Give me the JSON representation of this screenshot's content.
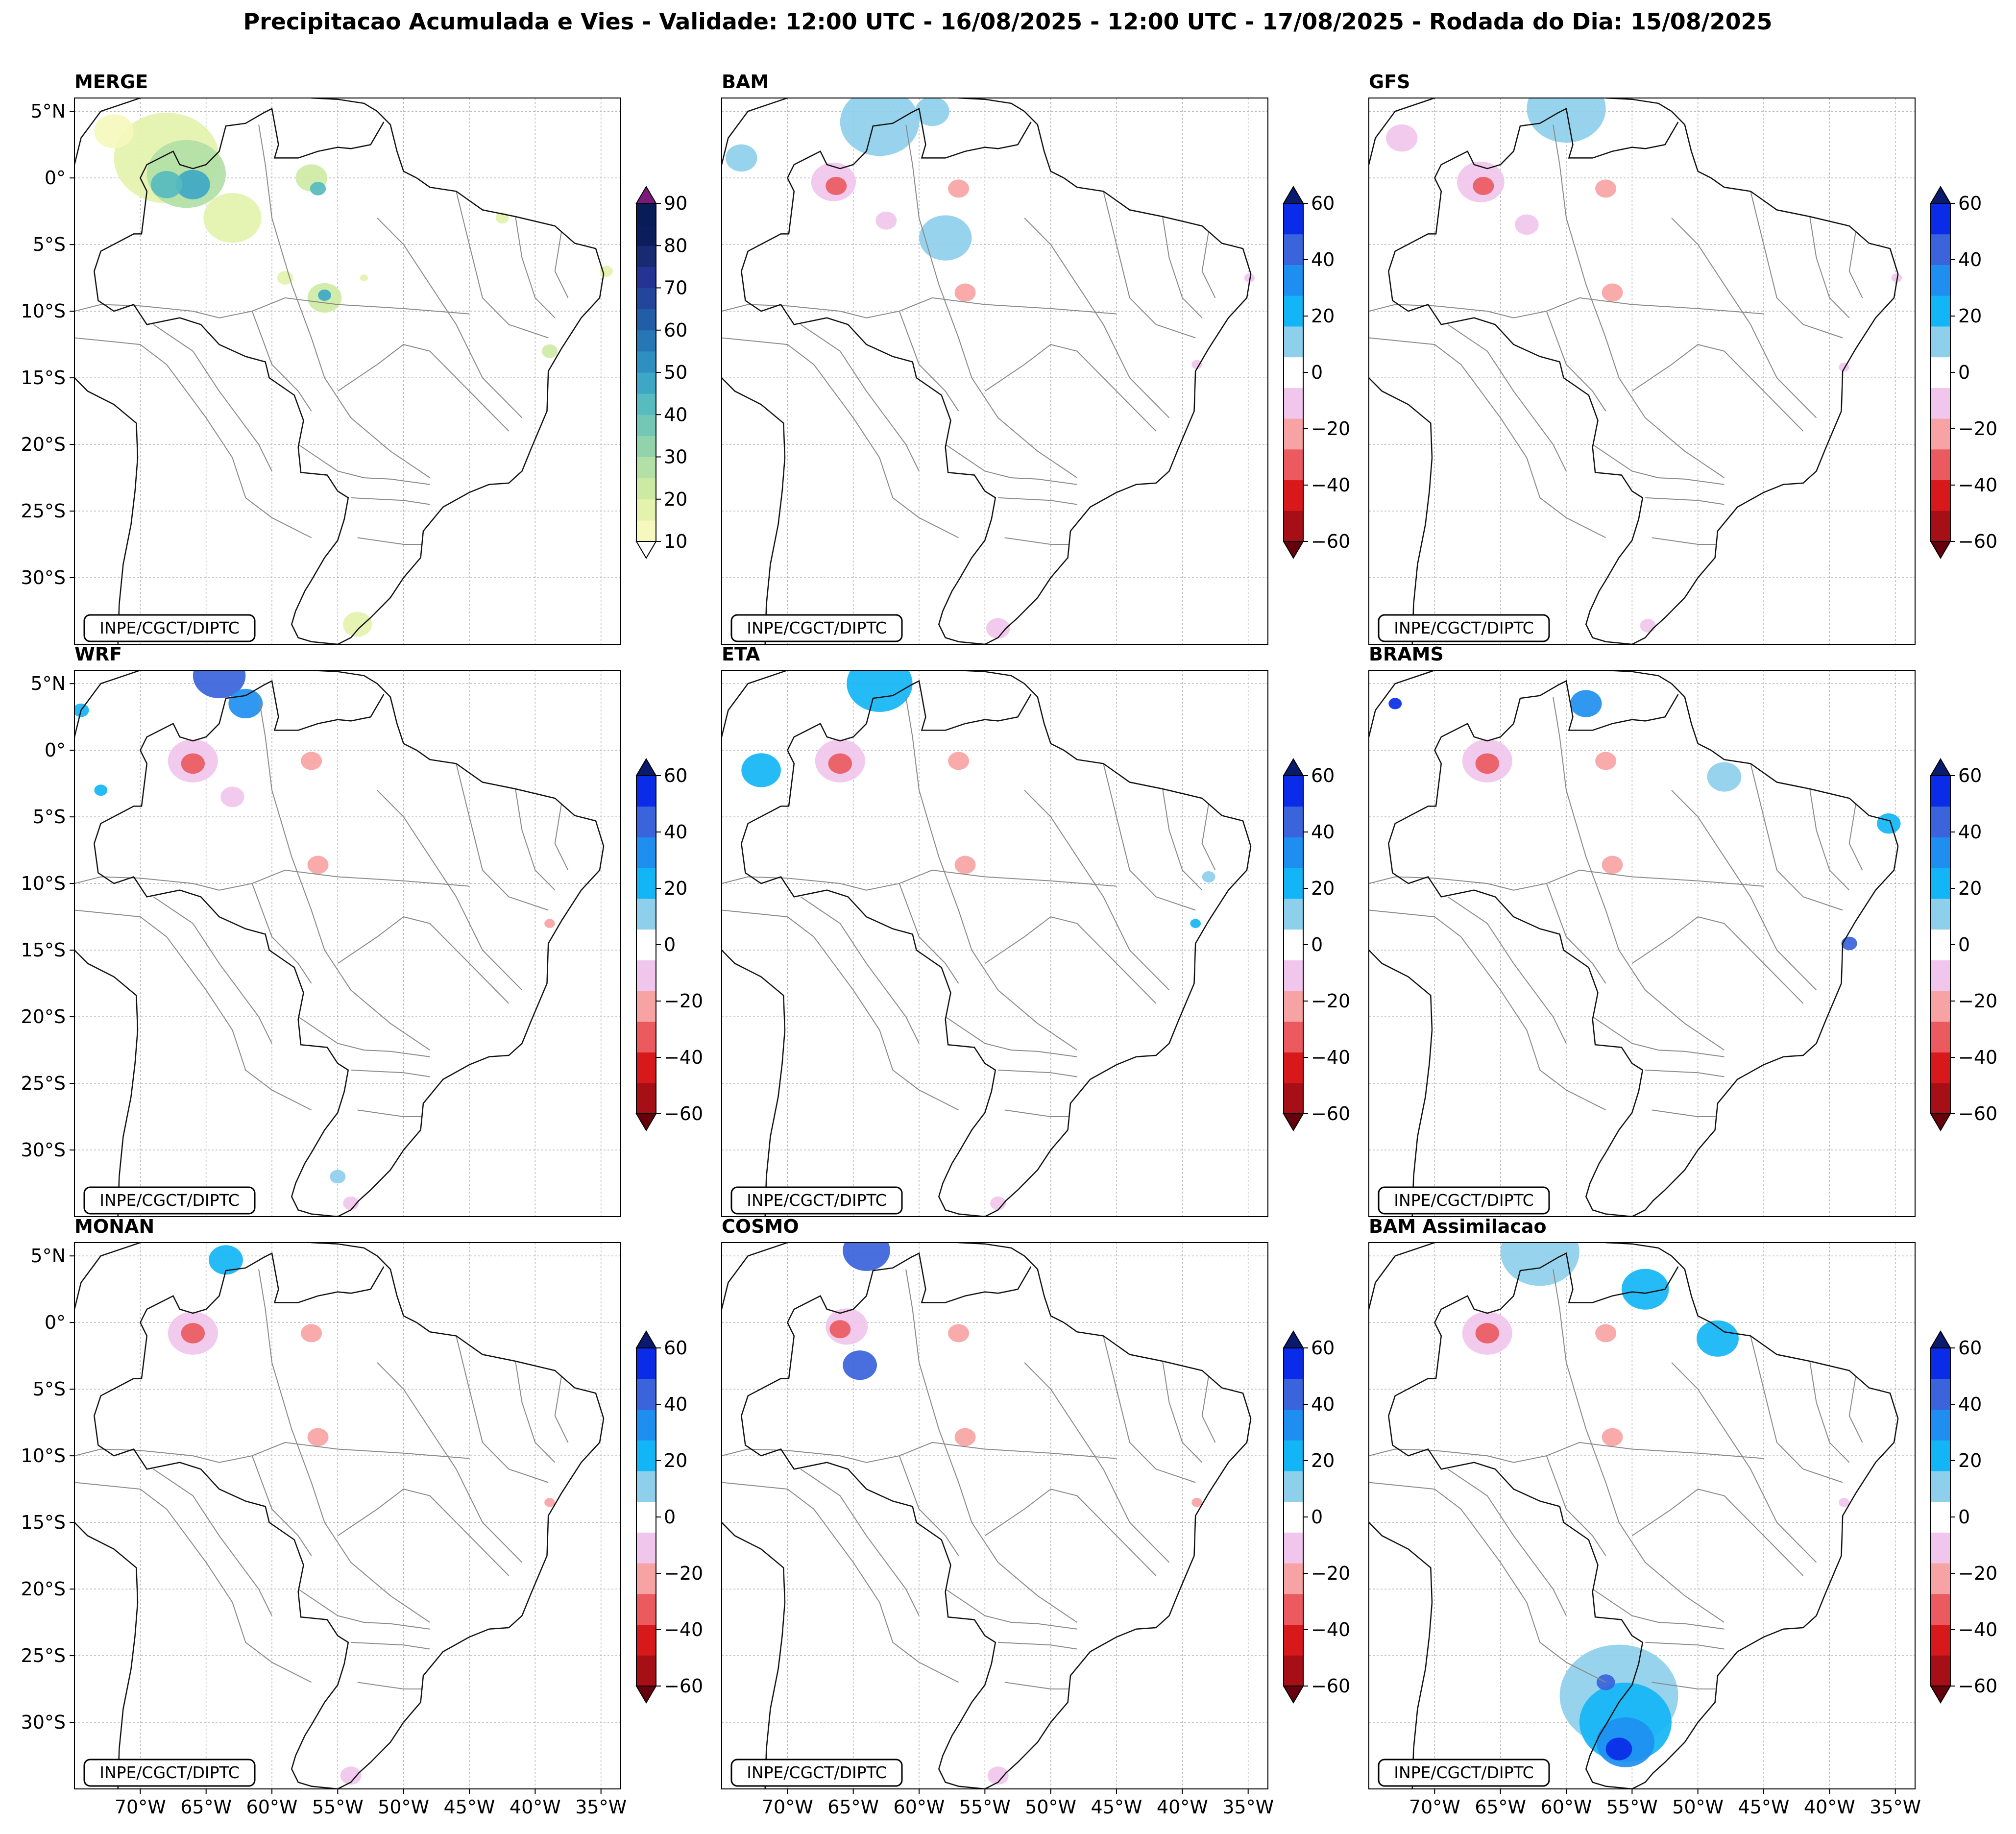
{
  "chart_data": {
    "type": "heatmap",
    "title": "Precipitacao Acumulada e Vies - Validade: 12:00 UTC - 16/08/2025 - 12:00 UTC - 17/08/2025 - Rodada do Dia: 15/08/2025",
    "credit": "INPE/CGCT/DIPTC",
    "xlim": [
      -75,
      -33.5
    ],
    "ylim": [
      -35,
      6
    ],
    "lon_ticks": [
      -70,
      -65,
      -60,
      -55,
      -50,
      -45,
      -40,
      -35
    ],
    "lon_tick_labels": [
      "70°W",
      "65°W",
      "60°W",
      "55°W",
      "50°W",
      "45°W",
      "40°W",
      "35°W"
    ],
    "lat_ticks": [
      5,
      0,
      -5,
      -10,
      -15,
      -20,
      -25,
      -30
    ],
    "lat_tick_labels": [
      "5°N",
      "0°",
      "5°S",
      "10°S",
      "15°S",
      "20°S",
      "25°S",
      "30°S"
    ],
    "colorbars": {
      "precip": {
        "ticks": [
          10,
          20,
          30,
          40,
          50,
          60,
          70,
          80,
          90
        ],
        "tick_labels": [
          "10",
          "20",
          "30",
          "40",
          "50",
          "60",
          "70",
          "80",
          "90"
        ],
        "levels": [
          10,
          15,
          20,
          25,
          30,
          35,
          40,
          45,
          50,
          55,
          60,
          65,
          70,
          75,
          80,
          85,
          90
        ],
        "colors": [
          "#f5f9bd",
          "#e3f2ac",
          "#cdeaa4",
          "#b2e0a6",
          "#93d3ab",
          "#74c7b5",
          "#57bbc0",
          "#3fa7c6",
          "#2f8fc0",
          "#2777b5",
          "#225ea8",
          "#23469c",
          "#253494",
          "#172a72",
          "#0b1d5a",
          "#081d58"
        ],
        "under_color": "#ffffff",
        "over_color": "#7b1a7c"
      },
      "bias": {
        "ticks": [
          -60,
          -40,
          -20,
          0,
          20,
          40,
          60
        ],
        "tick_labels": [
          "−60",
          "−40",
          "−20",
          "0",
          "20",
          "40",
          "60"
        ],
        "levels": [
          -60,
          -50,
          -40,
          -30,
          -20,
          -10,
          10,
          20,
          30,
          40,
          50,
          60
        ],
        "colors": [
          "#a50f15",
          "#d7191c",
          "#ea5a5f",
          "#f8a3a3",
          "#f0c6ec",
          "#ffffff",
          "#8ecfec",
          "#12b5f5",
          "#1e8ff0",
          "#3a63dc",
          "#0a2be8"
        ],
        "under_color": "#67000d",
        "over_color": "#0a1a6e"
      }
    },
    "panels": [
      {
        "name": "MERGE",
        "variable": "precipitation (mm)",
        "colorbar": "precip",
        "cells": [
          {
            "lon": -68,
            "lat": 1.5,
            "r": 4,
            "value": 15
          },
          {
            "lon": -66.5,
            "lat": 0.3,
            "r": 3,
            "value": 25
          },
          {
            "lon": -66,
            "lat": -0.5,
            "r": 1.3,
            "value": 45
          },
          {
            "lon": -68,
            "lat": -0.5,
            "r": 1.2,
            "value": 40
          },
          {
            "lon": -63,
            "lat": -3,
            "r": 2.2,
            "value": 15
          },
          {
            "lon": -72,
            "lat": 3.5,
            "r": 1.5,
            "value": 12
          },
          {
            "lon": -57,
            "lat": 0,
            "r": 1.2,
            "value": 20
          },
          {
            "lon": -56.5,
            "lat": -0.8,
            "r": 0.6,
            "value": 40
          },
          {
            "lon": -59,
            "lat": -7.5,
            "r": 0.6,
            "value": 15
          },
          {
            "lon": -56,
            "lat": -9,
            "r": 1.3,
            "value": 20
          },
          {
            "lon": -56,
            "lat": -8.8,
            "r": 0.5,
            "value": 45
          },
          {
            "lon": -53,
            "lat": -7.5,
            "r": 0.3,
            "value": 15
          },
          {
            "lon": -42.5,
            "lat": -3,
            "r": 0.5,
            "value": 15
          },
          {
            "lon": -34.6,
            "lat": -7,
            "r": 0.5,
            "value": 15
          },
          {
            "lon": -38.9,
            "lat": -13,
            "r": 0.6,
            "value": 20
          },
          {
            "lon": -53.5,
            "lat": -33.5,
            "r": 1.1,
            "value": 15
          }
        ]
      },
      {
        "name": "BAM",
        "variable": "bias (mm)",
        "colorbar": "bias",
        "cells": [
          {
            "lon": -66.5,
            "lat": -0.3,
            "r": 1.7,
            "value": -15
          },
          {
            "lon": -66.3,
            "lat": -0.6,
            "r": 0.8,
            "value": -35
          },
          {
            "lon": -62.5,
            "lat": -3.2,
            "r": 0.8,
            "value": -15
          },
          {
            "lon": -57,
            "lat": -0.8,
            "r": 0.8,
            "value": -25
          },
          {
            "lon": -56.5,
            "lat": -8.6,
            "r": 0.8,
            "value": -30
          },
          {
            "lon": -63,
            "lat": 4.2,
            "r": 3,
            "value": 15
          },
          {
            "lon": -59,
            "lat": 5,
            "r": 1.3,
            "value": 15
          },
          {
            "lon": -73.5,
            "lat": 1.5,
            "r": 1.2,
            "value": 15
          },
          {
            "lon": -58,
            "lat": -4.5,
            "r": 2,
            "value": 15
          },
          {
            "lon": -34.9,
            "lat": -7.5,
            "r": 0.4,
            "value": -20
          },
          {
            "lon": -38.9,
            "lat": -14,
            "r": 0.4,
            "value": -20
          },
          {
            "lon": -54,
            "lat": -33.8,
            "r": 0.9,
            "value": -15
          }
        ]
      },
      {
        "name": "GFS",
        "variable": "bias (mm)",
        "colorbar": "bias",
        "cells": [
          {
            "lon": -66.5,
            "lat": -0.3,
            "r": 1.8,
            "value": -15
          },
          {
            "lon": -66.3,
            "lat": -0.6,
            "r": 0.8,
            "value": -35
          },
          {
            "lon": -63,
            "lat": -3.5,
            "r": 0.9,
            "value": -15
          },
          {
            "lon": -57,
            "lat": -0.8,
            "r": 0.8,
            "value": -25
          },
          {
            "lon": -56.5,
            "lat": -8.6,
            "r": 0.8,
            "value": -30
          },
          {
            "lon": -60,
            "lat": 5.2,
            "r": 3,
            "value": 15
          },
          {
            "lon": -72.5,
            "lat": 3,
            "r": 1.2,
            "value": -15
          },
          {
            "lon": -34.9,
            "lat": -7.5,
            "r": 0.4,
            "value": -20
          },
          {
            "lon": -38.9,
            "lat": -14.2,
            "r": 0.4,
            "value": -20
          },
          {
            "lon": -53.8,
            "lat": -33.6,
            "r": 0.6,
            "value": -15
          }
        ]
      },
      {
        "name": "WRF",
        "variable": "bias (mm)",
        "colorbar": "bias",
        "cells": [
          {
            "lon": -66,
            "lat": -0.8,
            "r": 1.9,
            "value": -20
          },
          {
            "lon": -66,
            "lat": -1,
            "r": 0.9,
            "value": -40
          },
          {
            "lon": -63,
            "lat": -3.5,
            "r": 0.9,
            "value": -15
          },
          {
            "lon": -57,
            "lat": -0.8,
            "r": 0.8,
            "value": -25
          },
          {
            "lon": -56.5,
            "lat": -8.6,
            "r": 0.8,
            "value": -30
          },
          {
            "lon": -64,
            "lat": 5.6,
            "r": 2,
            "value": 45
          },
          {
            "lon": -62,
            "lat": 3.5,
            "r": 1.3,
            "value": 30
          },
          {
            "lon": -74.5,
            "lat": 3,
            "r": 0.6,
            "value": 25
          },
          {
            "lon": -73,
            "lat": -3,
            "r": 0.5,
            "value": 20
          },
          {
            "lon": -38.9,
            "lat": -13,
            "r": 0.4,
            "value": -30
          },
          {
            "lon": -55,
            "lat": -32,
            "r": 0.6,
            "value": 15
          },
          {
            "lon": -54,
            "lat": -34,
            "r": 0.6,
            "value": -15
          }
        ]
      },
      {
        "name": "ETA",
        "variable": "bias (mm)",
        "colorbar": "bias",
        "cells": [
          {
            "lon": -66,
            "lat": -0.8,
            "r": 1.9,
            "value": -20
          },
          {
            "lon": -66,
            "lat": -1,
            "r": 0.9,
            "value": -35
          },
          {
            "lon": -72,
            "lat": -1.5,
            "r": 1.5,
            "value": 25
          },
          {
            "lon": -63,
            "lat": 5,
            "r": 2.5,
            "value": 20
          },
          {
            "lon": -57,
            "lat": -0.8,
            "r": 0.8,
            "value": -25
          },
          {
            "lon": -56.5,
            "lat": -8.6,
            "r": 0.8,
            "value": -30
          },
          {
            "lon": -38,
            "lat": -9.5,
            "r": 0.5,
            "value": 15
          },
          {
            "lon": -39,
            "lat": -13,
            "r": 0.4,
            "value": 20
          },
          {
            "lon": -54,
            "lat": -34,
            "r": 0.6,
            "value": -15
          }
        ]
      },
      {
        "name": "BRAMS",
        "variable": "bias (mm)",
        "colorbar": "bias",
        "cells": [
          {
            "lon": -66,
            "lat": -0.8,
            "r": 1.9,
            "value": -20
          },
          {
            "lon": -66,
            "lat": -1,
            "r": 0.9,
            "value": -40
          },
          {
            "lon": -73,
            "lat": 3.5,
            "r": 0.5,
            "value": 55
          },
          {
            "lon": -58.5,
            "lat": 3.5,
            "r": 1.2,
            "value": 35
          },
          {
            "lon": -57,
            "lat": -0.8,
            "r": 0.8,
            "value": -25
          },
          {
            "lon": -56.5,
            "lat": -8.6,
            "r": 0.8,
            "value": -30
          },
          {
            "lon": -35.5,
            "lat": -5.5,
            "r": 0.9,
            "value": 20
          },
          {
            "lon": -38.5,
            "lat": -14.5,
            "r": 0.6,
            "value": 45
          },
          {
            "lon": -48,
            "lat": -2,
            "r": 1.3,
            "value": 15
          }
        ]
      },
      {
        "name": "MONAN",
        "variable": "bias (mm)",
        "colorbar": "bias",
        "cells": [
          {
            "lon": -66,
            "lat": -0.8,
            "r": 1.9,
            "value": -20
          },
          {
            "lon": -66,
            "lat": -0.8,
            "r": 0.9,
            "value": -40
          },
          {
            "lon": -63.5,
            "lat": 4.7,
            "r": 1.3,
            "value": 20
          },
          {
            "lon": -57,
            "lat": -0.8,
            "r": 0.8,
            "value": -25
          },
          {
            "lon": -56.5,
            "lat": -8.6,
            "r": 0.8,
            "value": -30
          },
          {
            "lon": -38.9,
            "lat": -13.5,
            "r": 0.4,
            "value": -30
          },
          {
            "lon": -54,
            "lat": -34,
            "r": 0.8,
            "value": -15
          }
        ]
      },
      {
        "name": "COSMO",
        "variable": "bias (mm)",
        "colorbar": "bias",
        "cells": [
          {
            "lon": -65.5,
            "lat": -0.3,
            "r": 1.6,
            "value": -20
          },
          {
            "lon": -66,
            "lat": -0.5,
            "r": 0.8,
            "value": -35
          },
          {
            "lon": -64,
            "lat": 5.4,
            "r": 1.8,
            "value": 45
          },
          {
            "lon": -64.5,
            "lat": -3.2,
            "r": 1.3,
            "value": 40
          },
          {
            "lon": -57,
            "lat": -0.8,
            "r": 0.8,
            "value": -25
          },
          {
            "lon": -56.5,
            "lat": -8.6,
            "r": 0.8,
            "value": -30
          },
          {
            "lon": -38.9,
            "lat": -13.5,
            "r": 0.4,
            "value": -25
          },
          {
            "lon": -54,
            "lat": -34,
            "r": 0.8,
            "value": -15
          }
        ]
      },
      {
        "name": "BAM Assimilacao",
        "variable": "bias (mm)",
        "colorbar": "bias",
        "cells": [
          {
            "lon": -66,
            "lat": -0.8,
            "r": 1.9,
            "value": -20
          },
          {
            "lon": -66,
            "lat": -0.8,
            "r": 0.9,
            "value": -40
          },
          {
            "lon": -57,
            "lat": -0.8,
            "r": 0.8,
            "value": -25
          },
          {
            "lon": -56.5,
            "lat": -8.6,
            "r": 0.8,
            "value": -30
          },
          {
            "lon": -62,
            "lat": 5.3,
            "r": 3,
            "value": 15
          },
          {
            "lon": -54,
            "lat": 2.5,
            "r": 1.8,
            "value": 20
          },
          {
            "lon": -48.5,
            "lat": -1.2,
            "r": 1.6,
            "value": 20
          },
          {
            "lon": -56,
            "lat": -28,
            "r": 4.5,
            "value": 15
          },
          {
            "lon": -55.5,
            "lat": -30,
            "r": 3.5,
            "value": 25
          },
          {
            "lon": -55.5,
            "lat": -31.5,
            "r": 2.2,
            "value": 35
          },
          {
            "lon": -56,
            "lat": -32,
            "r": 1,
            "value": 55
          },
          {
            "lon": -57,
            "lat": -27,
            "r": 0.7,
            "value": 45
          },
          {
            "lon": -38.9,
            "lat": -13.5,
            "r": 0.4,
            "value": -20
          }
        ]
      }
    ]
  }
}
